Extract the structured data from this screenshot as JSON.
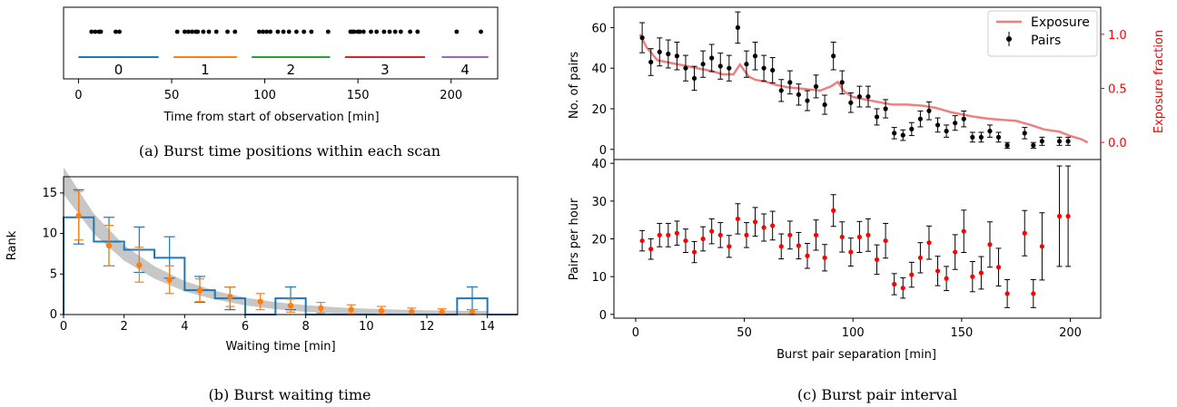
{
  "captions": {
    "a": "(a) Burst time positions within each scan",
    "b": "(b) Burst waiting time",
    "c": "(c) Burst pair interval"
  },
  "chart_data": [
    {
      "id": "a",
      "type": "scatter",
      "xlabel": "Time from start of observation   [min]",
      "xlim": [
        -8,
        225
      ],
      "xticks": [
        0,
        50,
        100,
        150,
        200
      ],
      "bursts_min": [
        7,
        9,
        11,
        12,
        20,
        22,
        53,
        57,
        59,
        61,
        63,
        64,
        67,
        70,
        74,
        80,
        84,
        97,
        99,
        101,
        103,
        107,
        110,
        113,
        117,
        121,
        125,
        134,
        146,
        147,
        148,
        150,
        151,
        153,
        157,
        160,
        164,
        167,
        170,
        173,
        178,
        182,
        203,
        216
      ],
      "scans": [
        {
          "label": "0",
          "start": 0,
          "end": 43,
          "color": "#1f77b4"
        },
        {
          "label": "1",
          "start": 51,
          "end": 85,
          "color": "#ff7f0e"
        },
        {
          "label": "2",
          "start": 93,
          "end": 135,
          "color": "#2ca02c"
        },
        {
          "label": "3",
          "start": 143,
          "end": 186,
          "color": "#d62728"
        },
        {
          "label": "4",
          "start": 195,
          "end": 220,
          "color": "#9467bd"
        }
      ]
    },
    {
      "id": "b",
      "type": "line",
      "xlabel": "Waiting time  [min]",
      "ylabel": "Rank",
      "xlim": [
        0,
        15
      ],
      "ylim": [
        0,
        17
      ],
      "xticks": [
        0,
        2,
        4,
        6,
        8,
        10,
        12,
        14
      ],
      "yticks": [
        0,
        5,
        10,
        15
      ],
      "step_hist": {
        "bin_width": 1,
        "bin_starts": [
          0,
          1,
          2,
          3,
          4,
          5,
          6,
          7,
          8,
          9,
          10,
          11,
          12,
          13,
          14
        ],
        "values": [
          12,
          9,
          8,
          7,
          3,
          2,
          0,
          2,
          0,
          0,
          0,
          0,
          0,
          2,
          0
        ],
        "errors": [
          [
            8.7,
            15.4
          ],
          [
            6.0,
            12.0
          ],
          [
            5.2,
            10.8
          ],
          [
            4.5,
            9.6
          ],
          [
            1.5,
            4.7
          ],
          [
            0.6,
            3.4
          ],
          [
            0,
            0
          ],
          [
            0.6,
            3.4
          ],
          [
            0,
            0
          ],
          [
            0,
            0
          ],
          [
            0,
            0
          ],
          [
            0,
            0
          ],
          [
            0,
            0
          ],
          [
            0.6,
            3.4
          ],
          [
            0,
            0
          ]
        ],
        "color": "#1f77b4"
      },
      "model_points": {
        "x": [
          0.5,
          1.5,
          2.5,
          3.5,
          4.5,
          5.5,
          6.5,
          7.5,
          8.5,
          9.5,
          10.5,
          11.5,
          12.5,
          13.5
        ],
        "y": [
          12.2,
          8.5,
          6.1,
          4.3,
          3.0,
          2.2,
          1.6,
          1.1,
          0.8,
          0.6,
          0.45,
          0.35,
          0.3,
          0.25
        ],
        "errors": [
          [
            9.2,
            15.2
          ],
          [
            6.0,
            11.0
          ],
          [
            4.0,
            8.3
          ],
          [
            2.6,
            6.0
          ],
          [
            1.6,
            4.4
          ],
          [
            1.0,
            3.4
          ],
          [
            0.6,
            2.6
          ],
          [
            0.3,
            1.9
          ],
          [
            0.2,
            1.5
          ],
          [
            0.1,
            1.2
          ],
          [
            0.05,
            1.0
          ],
          [
            0.0,
            0.8
          ],
          [
            0.0,
            0.7
          ],
          [
            0.0,
            0.6
          ]
        ],
        "color": "#ff7f0e"
      },
      "band": {
        "x": [
          0,
          1,
          2,
          3,
          4,
          5,
          6,
          7,
          8,
          9,
          10,
          11,
          12,
          13,
          14
        ],
        "center": [
          16.5,
          11.2,
          7.6,
          5.2,
          3.5,
          2.4,
          1.6,
          1.1,
          0.75,
          0.5,
          0.35,
          0.24,
          0.16,
          0.11,
          0.08
        ],
        "color": "#bdbdbd"
      }
    },
    {
      "id": "c_top",
      "type": "scatter",
      "ylabel": "No. of pairs",
      "y2label": "Exposure fraction",
      "xlim": [
        -10,
        214
      ],
      "ylim": [
        -5,
        70
      ],
      "y2lim": [
        -0.158,
        1.25
      ],
      "yticks": [
        0,
        20,
        40,
        60
      ],
      "y2ticks": [
        0.0,
        0.5,
        1.0
      ],
      "legend": {
        "position": "top-right",
        "entries": [
          "Exposure",
          "Pairs"
        ]
      },
      "pairs": {
        "x": [
          3,
          7,
          11,
          15,
          19,
          23,
          27,
          31,
          35,
          39,
          43,
          47,
          51,
          55,
          59,
          63,
          67,
          71,
          75,
          79,
          83,
          87,
          91,
          95,
          99,
          103,
          107,
          111,
          115,
          119,
          123,
          127,
          131,
          135,
          139,
          143,
          147,
          151,
          155,
          159,
          163,
          167,
          171,
          179,
          183,
          187,
          195,
          199
        ],
        "y": [
          55,
          43,
          48,
          47,
          46,
          40,
          35,
          42,
          45,
          41,
          40,
          60,
          42,
          46,
          40,
          39,
          29,
          33,
          27,
          24,
          31,
          22,
          46,
          33,
          23,
          26,
          26,
          16,
          20,
          8,
          7,
          10,
          15,
          19,
          12,
          9,
          13,
          15,
          6,
          6,
          9,
          6,
          2,
          8,
          2,
          4,
          4,
          4
        ],
        "errors": [
          7.4,
          6.6,
          6.9,
          6.9,
          6.8,
          6.3,
          5.9,
          6.5,
          6.7,
          6.4,
          6.3,
          7.7,
          6.5,
          6.8,
          6.3,
          6.2,
          5.4,
          5.7,
          5.2,
          4.9,
          5.6,
          4.7,
          6.8,
          5.7,
          4.8,
          5.1,
          5.1,
          4.0,
          4.5,
          2.8,
          2.6,
          3.2,
          3.9,
          4.4,
          3.5,
          3.0,
          3.6,
          3.9,
          2.4,
          2.4,
          3.0,
          2.4,
          1.4,
          2.8,
          1.4,
          2.0,
          2.0,
          2.0
        ],
        "color": "#000000"
      },
      "exposure": {
        "x": [
          2,
          5,
          10,
          15,
          20,
          25,
          30,
          35,
          40,
          45,
          48,
          52,
          55,
          60,
          65,
          70,
          75,
          80,
          85,
          90,
          93,
          96,
          100,
          110,
          118,
          125,
          132,
          138,
          145,
          150,
          155,
          162,
          168,
          175,
          182,
          188,
          195,
          200,
          205,
          208
        ],
        "y": [
          1.0,
          0.88,
          0.76,
          0.74,
          0.72,
          0.7,
          0.68,
          0.66,
          0.63,
          0.63,
          0.72,
          0.61,
          0.58,
          0.56,
          0.53,
          0.51,
          0.5,
          0.49,
          0.48,
          0.52,
          0.56,
          0.47,
          0.42,
          0.38,
          0.35,
          0.35,
          0.34,
          0.32,
          0.28,
          0.26,
          0.24,
          0.22,
          0.21,
          0.2,
          0.16,
          0.12,
          0.1,
          0.06,
          0.03,
          0.0
        ],
        "color": "#f08080"
      }
    },
    {
      "id": "c_bottom",
      "type": "scatter",
      "xlabel": "Burst pair separation  [min]",
      "ylabel": "Pairs per hour",
      "xlim": [
        -10,
        214
      ],
      "ylim": [
        -1,
        41
      ],
      "xticks": [
        0,
        50,
        100,
        150,
        200
      ],
      "yticks": [
        0,
        10,
        20,
        30,
        40
      ],
      "x": [
        3,
        7,
        11,
        15,
        19,
        23,
        27,
        31,
        35,
        39,
        43,
        47,
        51,
        55,
        59,
        63,
        67,
        71,
        75,
        79,
        83,
        87,
        91,
        95,
        99,
        103,
        107,
        111,
        115,
        119,
        123,
        127,
        131,
        135,
        139,
        143,
        147,
        151,
        155,
        159,
        163,
        167,
        171,
        179,
        183,
        187,
        195,
        199
      ],
      "y": [
        19.5,
        17.3,
        21,
        21,
        21.5,
        19.5,
        16.5,
        20,
        22,
        21,
        18,
        25.3,
        21,
        24.5,
        23,
        23.5,
        18,
        21,
        18.2,
        15.5,
        21,
        15,
        27.5,
        20.5,
        16.5,
        20.5,
        21,
        14.5,
        19.5,
        8,
        7,
        10.5,
        15,
        19,
        11.5,
        9.5,
        16.5,
        22,
        10,
        11,
        18.5,
        12.5,
        5.5,
        21.5,
        5.5,
        18,
        26,
        26
      ],
      "errors": [
        2.7,
        2.7,
        3.1,
        3.1,
        3.2,
        3.1,
        2.8,
        3.2,
        3.3,
        3.3,
        2.9,
        4.0,
        3.3,
        3.8,
        3.6,
        3.8,
        3.3,
        3.7,
        3.5,
        3.3,
        4.0,
        3.5,
        4.2,
        4.0,
        3.7,
        4.1,
        4.3,
        3.9,
        4.6,
        2.8,
        2.7,
        3.3,
        4.0,
        4.4,
        3.9,
        3.2,
        4.6,
        5.6,
        4.0,
        4.3,
        6.0,
        5.0,
        3.7,
        6.0,
        3.7,
        8.9,
        13.3,
        13.3
      ],
      "color": "#ff0000"
    }
  ]
}
